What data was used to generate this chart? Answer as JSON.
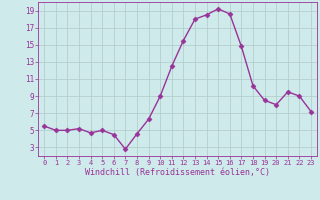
{
  "x": [
    0,
    1,
    2,
    3,
    4,
    5,
    6,
    7,
    8,
    9,
    10,
    11,
    12,
    13,
    14,
    15,
    16,
    17,
    18,
    19,
    20,
    21,
    22,
    23
  ],
  "y": [
    5.5,
    5.0,
    5.0,
    5.2,
    4.7,
    5.0,
    4.5,
    2.8,
    4.6,
    6.3,
    9.0,
    12.5,
    15.5,
    18.0,
    18.5,
    19.2,
    18.6,
    14.8,
    10.2,
    8.5,
    8.0,
    9.5,
    9.0,
    7.2
  ],
  "line_color": "#993399",
  "marker": "D",
  "marker_size": 2.5,
  "xlim": [
    -0.5,
    23.5
  ],
  "ylim": [
    2,
    20
  ],
  "yticks": [
    3,
    5,
    7,
    9,
    11,
    13,
    15,
    17,
    19
  ],
  "xticks": [
    0,
    1,
    2,
    3,
    4,
    5,
    6,
    7,
    8,
    9,
    10,
    11,
    12,
    13,
    14,
    15,
    16,
    17,
    18,
    19,
    20,
    21,
    22,
    23
  ],
  "xlabel": "Windchill (Refroidissement éolien,°C)",
  "background_color": "#ceeaea",
  "grid_color": "#b0c8c8",
  "label_color": "#993399",
  "tick_color": "#993399",
  "line_width": 1.0
}
